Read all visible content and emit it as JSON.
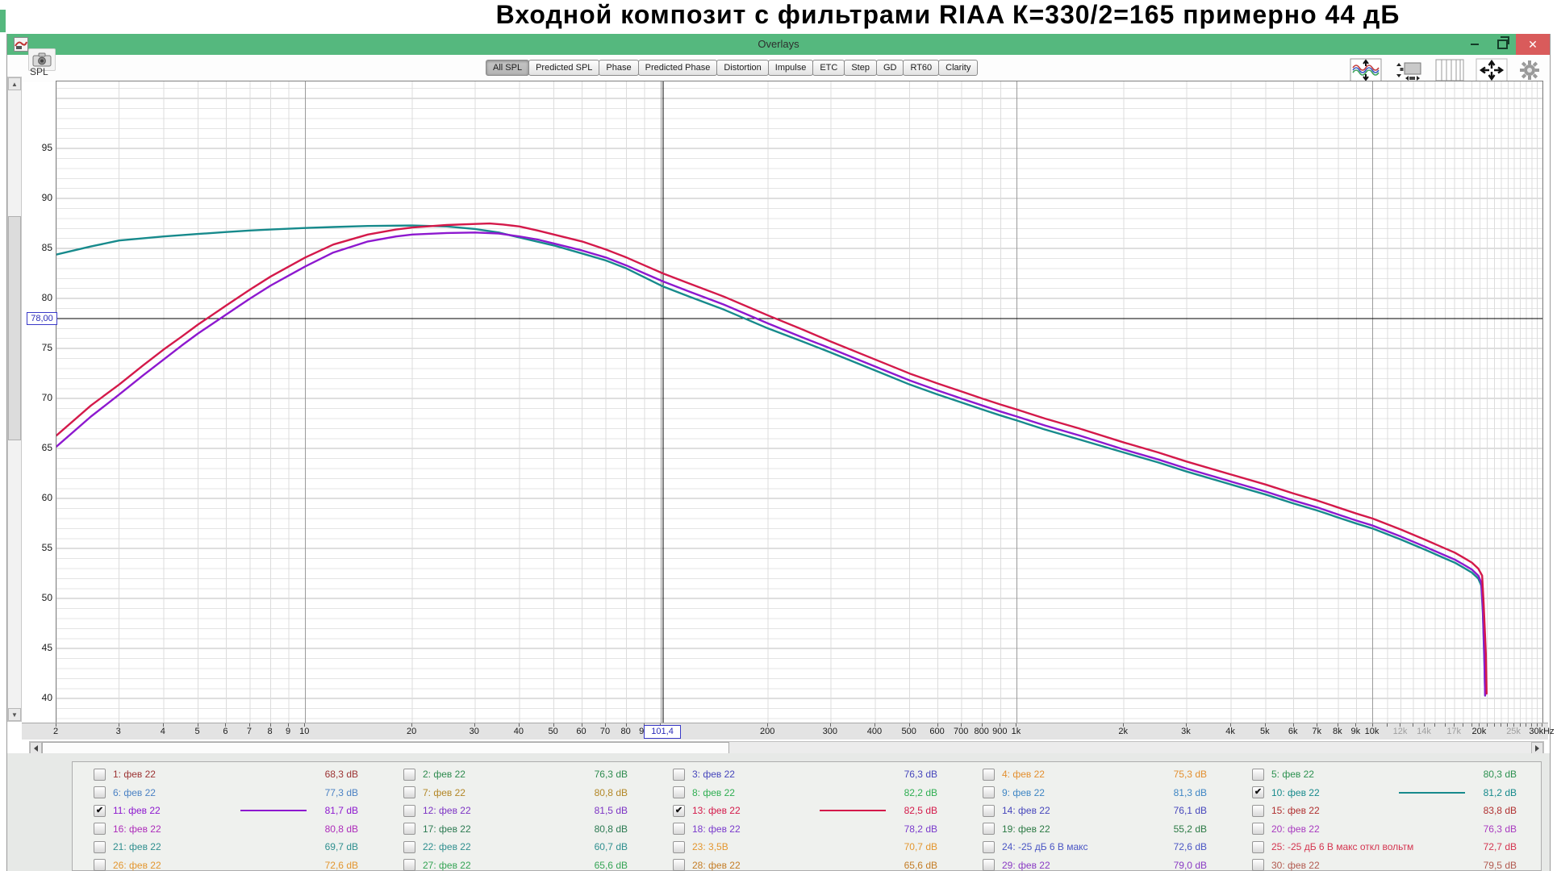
{
  "page_title": "Входной композит с фильтрами RIAA  К=330/2=165 примерно 44 дБ",
  "window": {
    "title": "Overlays",
    "close_glyph": "✕"
  },
  "toolbar": {
    "tabs": [
      "All SPL",
      "Predicted SPL",
      "Phase",
      "Predicted Phase",
      "Distortion",
      "Impulse",
      "ETC",
      "Step",
      "GD",
      "RT60",
      "Clarity"
    ],
    "selected_tab": "All SPL"
  },
  "axis": {
    "y_title": "SPL",
    "y_ticks": [
      95,
      90,
      85,
      80,
      75,
      70,
      65,
      60,
      55,
      50,
      45,
      40
    ],
    "x_ticks": [
      {
        "f": 2,
        "label": "2"
      },
      {
        "f": 3,
        "label": "3"
      },
      {
        "f": 4,
        "label": "4"
      },
      {
        "f": 5,
        "label": "5"
      },
      {
        "f": 6,
        "label": "6"
      },
      {
        "f": 7,
        "label": "7"
      },
      {
        "f": 8,
        "label": "8"
      },
      {
        "f": 9,
        "label": "9"
      },
      {
        "f": 10,
        "label": "10"
      },
      {
        "f": 20,
        "label": "20"
      },
      {
        "f": 30,
        "label": "30"
      },
      {
        "f": 40,
        "label": "40"
      },
      {
        "f": 50,
        "label": "50"
      },
      {
        "f": 60,
        "label": "60"
      },
      {
        "f": 70,
        "label": "70"
      },
      {
        "f": 80,
        "label": "80"
      },
      {
        "f": 90,
        "label": "90"
      },
      {
        "f": 200,
        "label": "200"
      },
      {
        "f": 300,
        "label": "300"
      },
      {
        "f": 400,
        "label": "400"
      },
      {
        "f": 500,
        "label": "500"
      },
      {
        "f": 600,
        "label": "600"
      },
      {
        "f": 700,
        "label": "700"
      },
      {
        "f": 800,
        "label": "800"
      },
      {
        "f": 900,
        "label": "900"
      },
      {
        "f": 1000,
        "label": "1k"
      },
      {
        "f": 2000,
        "label": "2k"
      },
      {
        "f": 3000,
        "label": "3k"
      },
      {
        "f": 4000,
        "label": "4k"
      },
      {
        "f": 5000,
        "label": "5k"
      },
      {
        "f": 6000,
        "label": "6k"
      },
      {
        "f": 7000,
        "label": "7k"
      },
      {
        "f": 8000,
        "label": "8k"
      },
      {
        "f": 9000,
        "label": "9k"
      },
      {
        "f": 10000,
        "label": "10k"
      },
      {
        "f": 12000,
        "label": "12k",
        "dim": true
      },
      {
        "f": 14000,
        "label": "14k",
        "dim": true
      },
      {
        "f": 17000,
        "label": "17k",
        "dim": true
      },
      {
        "f": 20000,
        "label": "20k"
      },
      {
        "f": 25000,
        "label": "25k",
        "dim": true
      },
      {
        "f": 30000,
        "label": "30kHz"
      }
    ]
  },
  "cursor": {
    "freq": 101.4,
    "freq_label": "101,4",
    "level": 78,
    "level_label": "78,00"
  },
  "chart_data": {
    "type": "line",
    "x_scale": "log",
    "xlim": [
      2,
      30000
    ],
    "ylim": [
      37.6,
      101.7
    ],
    "ylabel": "SPL (dB)",
    "grid": true,
    "legend_position": "bottom",
    "series": [
      {
        "name": "10: фев 22",
        "color": "#178a8c",
        "points": [
          [
            2,
            84.4
          ],
          [
            2.5,
            85.2
          ],
          [
            3,
            85.8
          ],
          [
            4,
            86.2
          ],
          [
            5,
            86.45
          ],
          [
            6,
            86.65
          ],
          [
            7,
            86.8
          ],
          [
            8,
            86.9
          ],
          [
            10,
            87.05
          ],
          [
            12,
            87.15
          ],
          [
            15,
            87.25
          ],
          [
            20,
            87.3
          ],
          [
            25,
            87.2
          ],
          [
            30,
            86.95
          ],
          [
            35,
            86.6
          ],
          [
            40,
            86.1
          ],
          [
            50,
            85.3
          ],
          [
            60,
            84.5
          ],
          [
            70,
            83.8
          ],
          [
            80,
            83.0
          ],
          [
            90,
            82.1
          ],
          [
            101.4,
            81.2
          ],
          [
            120,
            80.2
          ],
          [
            150,
            78.9
          ],
          [
            200,
            77.0
          ],
          [
            250,
            75.7
          ],
          [
            300,
            74.6
          ],
          [
            400,
            72.8
          ],
          [
            500,
            71.4
          ],
          [
            600,
            70.4
          ],
          [
            700,
            69.6
          ],
          [
            800,
            68.9
          ],
          [
            900,
            68.3
          ],
          [
            1000,
            67.8
          ],
          [
            1200,
            66.9
          ],
          [
            1500,
            65.9
          ],
          [
            2000,
            64.6
          ],
          [
            2500,
            63.6
          ],
          [
            3000,
            62.7
          ],
          [
            4000,
            61.4
          ],
          [
            5000,
            60.4
          ],
          [
            6000,
            59.5
          ],
          [
            7000,
            58.8
          ],
          [
            8000,
            58.1
          ],
          [
            9000,
            57.5
          ],
          [
            10000,
            57.0
          ],
          [
            12000,
            55.9
          ],
          [
            14000,
            54.9
          ],
          [
            16000,
            54.0
          ],
          [
            17000,
            53.6
          ],
          [
            18000,
            53.1
          ],
          [
            19000,
            52.6
          ],
          [
            19800,
            52.0
          ],
          [
            20200,
            51.3
          ],
          [
            20400,
            48.5
          ],
          [
            20600,
            43.5
          ],
          [
            20700,
            40.3
          ]
        ]
      },
      {
        "name": "11: фев 22",
        "color": "#8d18cf",
        "points": [
          [
            2,
            65.2
          ],
          [
            2.5,
            68.2
          ],
          [
            3,
            70.4
          ],
          [
            3.5,
            72.3
          ],
          [
            4,
            73.9
          ],
          [
            4.5,
            75.3
          ],
          [
            5,
            76.5
          ],
          [
            6,
            78.4
          ],
          [
            7,
            80.0
          ],
          [
            8,
            81.3
          ],
          [
            9,
            82.3
          ],
          [
            10,
            83.2
          ],
          [
            12,
            84.6
          ],
          [
            15,
            85.7
          ],
          [
            18,
            86.2
          ],
          [
            20,
            86.4
          ],
          [
            25,
            86.55
          ],
          [
            30,
            86.6
          ],
          [
            35,
            86.5
          ],
          [
            40,
            86.2
          ],
          [
            45,
            85.9
          ],
          [
            50,
            85.5
          ],
          [
            60,
            84.8
          ],
          [
            70,
            84.1
          ],
          [
            80,
            83.3
          ],
          [
            90,
            82.5
          ],
          [
            101.4,
            81.7
          ],
          [
            120,
            80.7
          ],
          [
            150,
            79.4
          ],
          [
            200,
            77.5
          ],
          [
            250,
            76.1
          ],
          [
            300,
            75.0
          ],
          [
            400,
            73.2
          ],
          [
            500,
            71.8
          ],
          [
            600,
            70.8
          ],
          [
            700,
            70.0
          ],
          [
            800,
            69.3
          ],
          [
            900,
            68.7
          ],
          [
            1000,
            68.2
          ],
          [
            1200,
            67.3
          ],
          [
            1500,
            66.3
          ],
          [
            2000,
            64.9
          ],
          [
            2500,
            63.9
          ],
          [
            3000,
            63.0
          ],
          [
            4000,
            61.7
          ],
          [
            5000,
            60.7
          ],
          [
            6000,
            59.8
          ],
          [
            7000,
            59.1
          ],
          [
            8000,
            58.4
          ],
          [
            9000,
            57.8
          ],
          [
            10000,
            57.3
          ],
          [
            12000,
            56.2
          ],
          [
            14000,
            55.2
          ],
          [
            16000,
            54.3
          ],
          [
            17000,
            53.9
          ],
          [
            18000,
            53.4
          ],
          [
            19000,
            52.9
          ],
          [
            19800,
            52.3
          ],
          [
            20200,
            51.6
          ],
          [
            20400,
            49.0
          ],
          [
            20600,
            44.0
          ],
          [
            20700,
            40.3
          ]
        ]
      },
      {
        "name": "13: фев 22",
        "color": "#d4194a",
        "points": [
          [
            2,
            66.3
          ],
          [
            2.5,
            69.3
          ],
          [
            3,
            71.4
          ],
          [
            3.5,
            73.3
          ],
          [
            4,
            74.9
          ],
          [
            4.5,
            76.2
          ],
          [
            5,
            77.4
          ],
          [
            6,
            79.3
          ],
          [
            7,
            80.9
          ],
          [
            8,
            82.2
          ],
          [
            9,
            83.2
          ],
          [
            10,
            84.1
          ],
          [
            12,
            85.4
          ],
          [
            15,
            86.4
          ],
          [
            18,
            86.9
          ],
          [
            20,
            87.1
          ],
          [
            25,
            87.35
          ],
          [
            30,
            87.45
          ],
          [
            33,
            87.5
          ],
          [
            36,
            87.4
          ],
          [
            40,
            87.2
          ],
          [
            45,
            86.8
          ],
          [
            50,
            86.4
          ],
          [
            60,
            85.7
          ],
          [
            70,
            84.9
          ],
          [
            80,
            84.1
          ],
          [
            90,
            83.3
          ],
          [
            101.4,
            82.5
          ],
          [
            120,
            81.5
          ],
          [
            150,
            80.2
          ],
          [
            200,
            78.3
          ],
          [
            250,
            76.9
          ],
          [
            300,
            75.7
          ],
          [
            400,
            73.9
          ],
          [
            500,
            72.5
          ],
          [
            600,
            71.5
          ],
          [
            700,
            70.7
          ],
          [
            800,
            70.0
          ],
          [
            900,
            69.4
          ],
          [
            1000,
            68.9
          ],
          [
            1200,
            68.0
          ],
          [
            1500,
            67.0
          ],
          [
            2000,
            65.6
          ],
          [
            2500,
            64.6
          ],
          [
            3000,
            63.7
          ],
          [
            4000,
            62.4
          ],
          [
            5000,
            61.4
          ],
          [
            6000,
            60.5
          ],
          [
            7000,
            59.8
          ],
          [
            8000,
            59.1
          ],
          [
            9000,
            58.5
          ],
          [
            10000,
            58.0
          ],
          [
            12000,
            56.9
          ],
          [
            14000,
            55.9
          ],
          [
            16000,
            55.0
          ],
          [
            17000,
            54.6
          ],
          [
            18000,
            54.1
          ],
          [
            19000,
            53.6
          ],
          [
            19800,
            53.0
          ],
          [
            20300,
            52.3
          ],
          [
            20500,
            49.5
          ],
          [
            20800,
            44.5
          ],
          [
            20900,
            40.5
          ]
        ]
      }
    ]
  },
  "legend": {
    "check_glyph": "✔",
    "entries": [
      {
        "label": "1: фев 22",
        "value": "68,3 dB",
        "color": "#9c3333",
        "checked": false,
        "swatch": false
      },
      {
        "label": "2: фев 22",
        "value": "76,3 dB",
        "color": "#2e8b4f",
        "checked": false,
        "swatch": false
      },
      {
        "label": "3: фев 22",
        "value": "76,3 dB",
        "color": "#4646bc",
        "checked": false,
        "swatch": false
      },
      {
        "label": "4: фев 22",
        "value": "75,3 dB",
        "color": "#e38f2f",
        "checked": false,
        "swatch": false
      },
      {
        "label": "5: фев 22",
        "value": "80,3 dB",
        "color": "#2c9150",
        "checked": false,
        "swatch": false
      },
      {
        "label": "6: фев 22",
        "value": "77,3 dB",
        "color": "#4b82c4",
        "checked": false,
        "swatch": false
      },
      {
        "label": "7: фев 22",
        "value": "80,8 dB",
        "color": "#b38727",
        "checked": false,
        "swatch": false
      },
      {
        "label": "8: фев 22",
        "value": "82,2 dB",
        "color": "#2fae52",
        "checked": false,
        "swatch": false
      },
      {
        "label": "9: фев 22",
        "value": "81,3 dB",
        "color": "#3f86c4",
        "checked": false,
        "swatch": false
      },
      {
        "label": "10: фев 22",
        "value": "81,2 dB",
        "color": "#178a8c",
        "checked": true,
        "swatch": true
      },
      {
        "label": "11: фев 22",
        "value": "81,7 dB",
        "color": "#8d18cf",
        "checked": true,
        "swatch": true
      },
      {
        "label": "12: фев 22",
        "value": "81,5 dB",
        "color": "#7c33c4",
        "checked": false,
        "swatch": false
      },
      {
        "label": "13: фев 22",
        "value": "82,5 dB",
        "color": "#d4194a",
        "checked": true,
        "swatch": true
      },
      {
        "label": "14: фев 22",
        "value": "76,1 dB",
        "color": "#4646bc",
        "checked": false,
        "swatch": false
      },
      {
        "label": "15: фев 22",
        "value": "83,8 dB",
        "color": "#b03030",
        "checked": false,
        "swatch": false
      },
      {
        "label": "16: фев 22",
        "value": "80,8 dB",
        "color": "#ad2cba",
        "checked": false,
        "swatch": false
      },
      {
        "label": "17: фев 22",
        "value": "80,8 dB",
        "color": "#2c7a52",
        "checked": false,
        "swatch": false
      },
      {
        "label": "18: фев 22",
        "value": "78,2 dB",
        "color": "#7a3bcc",
        "checked": false,
        "swatch": false
      },
      {
        "label": "19: фев 22",
        "value": "55,2 dB",
        "color": "#2c7a45",
        "checked": false,
        "swatch": false
      },
      {
        "label": "20: фев 22",
        "value": "76,3 dB",
        "color": "#a93bc0",
        "checked": false,
        "swatch": false
      },
      {
        "label": "21: фев 22",
        "value": "69,7 dB",
        "color": "#2f8f8f",
        "checked": false,
        "swatch": false
      },
      {
        "label": "22: фев 22",
        "value": "60,7 dB",
        "color": "#2f8f8f",
        "checked": false,
        "swatch": false
      },
      {
        "label": "23: 3,5В",
        "value": "70,7 dB",
        "color": "#e3962f",
        "checked": false,
        "swatch": false
      },
      {
        "label": "24: -25 дБ 6 В макс",
        "value": "72,6 dB",
        "color": "#4a55c4",
        "checked": false,
        "swatch": false
      },
      {
        "label": "25: -25 дБ 6 В макс откл вольтм",
        "value": "72,7 dB",
        "color": "#d43550",
        "checked": false,
        "swatch": false
      },
      {
        "label": "26: фев 22",
        "value": "72,6 dB",
        "color": "#e3962f",
        "checked": false,
        "swatch": false
      },
      {
        "label": "27: фев 22",
        "value": "65,6 dB",
        "color": "#35a455",
        "checked": false,
        "swatch": false
      },
      {
        "label": "28: фев 22",
        "value": "65,6 dB",
        "color": "#c47d26",
        "checked": false,
        "swatch": false
      },
      {
        "label": "29: фев 22",
        "value": "79,0 dB",
        "color": "#8a3bc4",
        "checked": false,
        "swatch": false
      },
      {
        "label": "30: фев 22",
        "value": "79,5 dB",
        "color": "#b25a50",
        "checked": false,
        "swatch": false
      }
    ]
  }
}
